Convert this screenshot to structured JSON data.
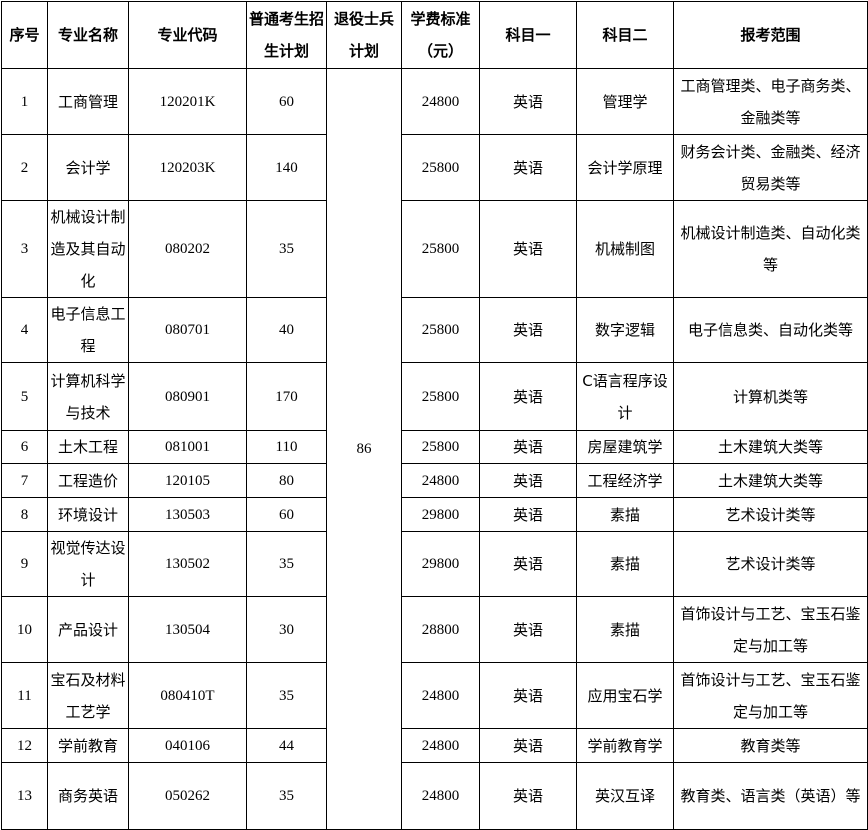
{
  "headers": [
    "序号",
    "专业名称",
    "专业代码",
    "普通考生招生计划",
    "退役士兵计划",
    "学费标准（元）",
    "科目一",
    "科目二",
    "报考范围"
  ],
  "veteran_plan_total": "86",
  "rows": [
    {
      "no": "1",
      "name": "工商管理",
      "code": "120201K",
      "plan": "60",
      "fee": "24800",
      "subject1": "英语",
      "subject2": "管理学",
      "scope": "工商管理类、电子商务类、金融类等"
    },
    {
      "no": "2",
      "name": "会计学",
      "code": "120203K",
      "plan": "140",
      "fee": "25800",
      "subject1": "英语",
      "subject2": "会计学原理",
      "scope": "财务会计类、金融类、经济贸易类等"
    },
    {
      "no": "3",
      "name": "机械设计制造及其自动化",
      "code": "080202",
      "plan": "35",
      "fee": "25800",
      "subject1": "英语",
      "subject2": "机械制图",
      "scope": "机械设计制造类、自动化类等"
    },
    {
      "no": "4",
      "name": "电子信息工程",
      "code": "080701",
      "plan": "40",
      "fee": "25800",
      "subject1": "英语",
      "subject2": "数字逻辑",
      "scope": "电子信息类、自动化类等"
    },
    {
      "no": "5",
      "name": "计算机科学与技术",
      "code": "080901",
      "plan": "170",
      "fee": "25800",
      "subject1": "英语",
      "subject2": "C语言程序设计",
      "scope": "计算机类等"
    },
    {
      "no": "6",
      "name": "土木工程",
      "code": "081001",
      "plan": "110",
      "fee": "25800",
      "subject1": "英语",
      "subject2": "房屋建筑学",
      "scope": "土木建筑大类等"
    },
    {
      "no": "7",
      "name": "工程造价",
      "code": "120105",
      "plan": "80",
      "fee": "24800",
      "subject1": "英语",
      "subject2": "工程经济学",
      "scope": "土木建筑大类等"
    },
    {
      "no": "8",
      "name": "环境设计",
      "code": "130503",
      "plan": "60",
      "fee": "29800",
      "subject1": "英语",
      "subject2": "素描",
      "scope": "艺术设计类等"
    },
    {
      "no": "9",
      "name": "视觉传达设计",
      "code": "130502",
      "plan": "35",
      "fee": "29800",
      "subject1": "英语",
      "subject2": "素描",
      "scope": "艺术设计类等"
    },
    {
      "no": "10",
      "name": "产品设计",
      "code": "130504",
      "plan": "30",
      "fee": "28800",
      "subject1": "英语",
      "subject2": "素描",
      "scope": "首饰设计与工艺、宝玉石鉴定与加工等"
    },
    {
      "no": "11",
      "name": "宝石及材料工艺学",
      "code": "080410T",
      "plan": "35",
      "fee": "24800",
      "subject1": "英语",
      "subject2": "应用宝石学",
      "scope": "首饰设计与工艺、宝玉石鉴定与加工等"
    },
    {
      "no": "12",
      "name": "学前教育",
      "code": "040106",
      "plan": "44",
      "fee": "24800",
      "subject1": "英语",
      "subject2": "学前教育学",
      "scope": "教育类等"
    },
    {
      "no": "13",
      "name": "商务英语",
      "code": "050262",
      "plan": "35",
      "fee": "24800",
      "subject1": "英语",
      "subject2": "英汉互译",
      "scope": "教育类、语言类（英语）等"
    }
  ]
}
